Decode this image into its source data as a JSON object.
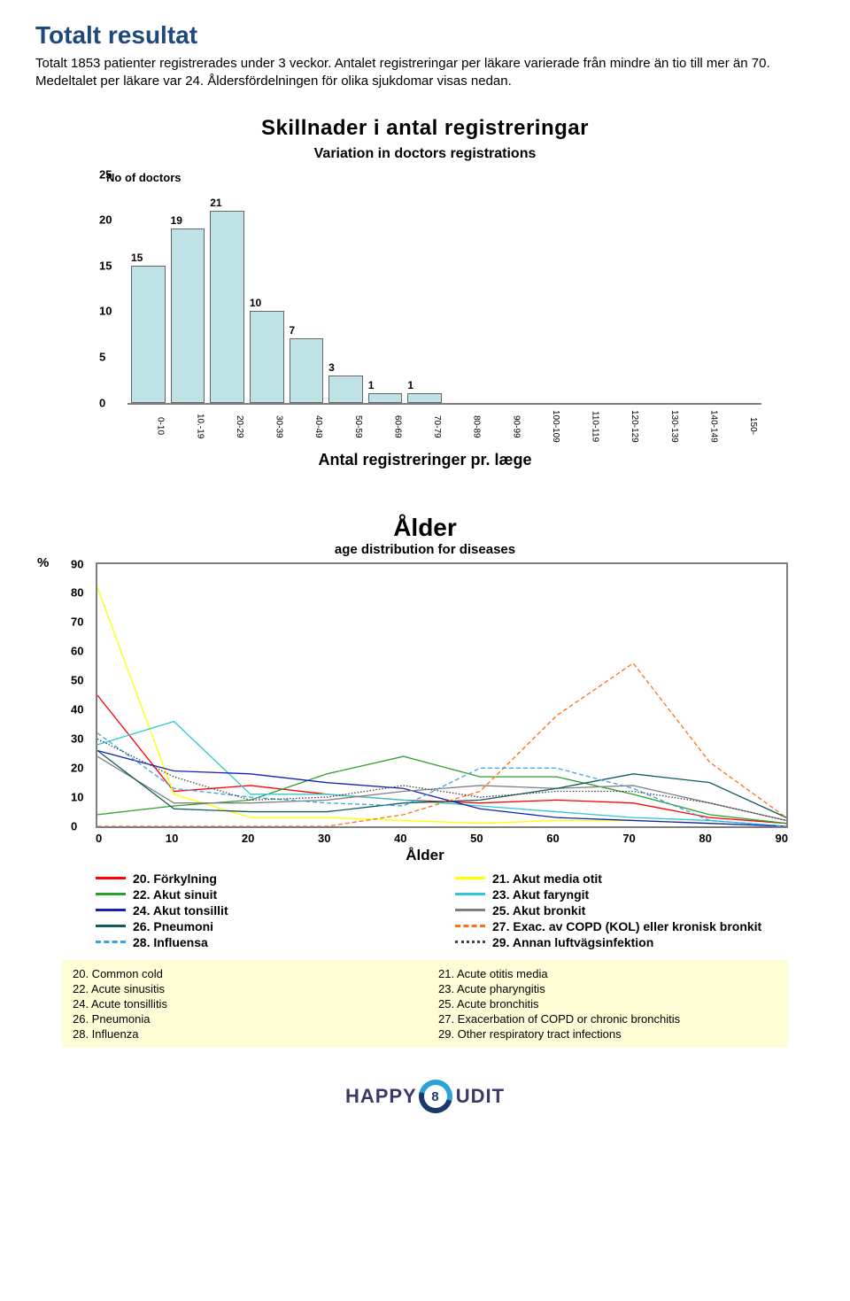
{
  "title": "Totalt resultat",
  "intro": "Totalt 1853 patienter registrerades under 3 veckor. Antalet registreringar per läkare varierade från mindre än tio till mer än 70. Medeltalet per läkare var 24. Åldersfördelningen för olika sjukdomar visas nedan.",
  "bar_chart": {
    "type": "bar",
    "title": "Skillnader i antal registreringar",
    "subtitle": "Variation in doctors registrations",
    "y_note": "No of doctors",
    "bar_color": "#bfe2e7",
    "bar_border": "#666666",
    "axis_color": "#7f7f7f",
    "y_max": 25,
    "y_ticks": [
      0,
      5,
      10,
      15,
      20,
      25
    ],
    "categories": [
      "0-10",
      "10.-19",
      "20-29",
      "30-39",
      "40-49",
      "50-59",
      "60-69",
      "70-79",
      "80-89",
      "90-99",
      "100-109",
      "110-119",
      "120-129",
      "130-139",
      "140-149",
      "150-"
    ],
    "values": [
      15,
      19,
      21,
      10,
      7,
      3,
      1,
      1,
      0,
      0,
      0,
      0,
      0,
      0,
      0,
      0
    ],
    "x_title": "Antal registreringer pr. læge"
  },
  "line_chart": {
    "type": "line",
    "title": "Ålder",
    "subtitle": "age distribution for diseases",
    "pct_label": "%",
    "y_max": 90,
    "y_ticks": [
      0,
      10,
      20,
      30,
      40,
      50,
      60,
      70,
      80,
      90
    ],
    "x_max": 90,
    "x_ticks": [
      0,
      10,
      20,
      30,
      40,
      50,
      60,
      70,
      80,
      90
    ],
    "x_title": "Ålder",
    "axis_color": "#7f7f7f",
    "series": [
      {
        "label": "20. Förkylning",
        "en": "20. Common cold",
        "color": "#ff0000",
        "style": "solid",
        "pts": [
          [
            0,
            45
          ],
          [
            10,
            12
          ],
          [
            20,
            14
          ],
          [
            30,
            11
          ],
          [
            40,
            9
          ],
          [
            50,
            8
          ],
          [
            60,
            9
          ],
          [
            70,
            8
          ],
          [
            80,
            3
          ],
          [
            90,
            1
          ]
        ]
      },
      {
        "label": "21. Akut media otit",
        "en": "21. Acute otitis media",
        "color": "#ffff00",
        "style": "solid",
        "pts": [
          [
            0,
            82
          ],
          [
            10,
            11
          ],
          [
            20,
            3
          ],
          [
            30,
            3
          ],
          [
            40,
            2
          ],
          [
            50,
            1
          ],
          [
            60,
            2
          ],
          [
            70,
            2
          ],
          [
            80,
            1
          ],
          [
            90,
            0
          ]
        ]
      },
      {
        "label": "22. Akut sinuit",
        "en": "22. Acute sinusitis",
        "color": "#2e9e2e",
        "style": "solid",
        "pts": [
          [
            0,
            4
          ],
          [
            10,
            7
          ],
          [
            20,
            9
          ],
          [
            30,
            18
          ],
          [
            40,
            24
          ],
          [
            50,
            17
          ],
          [
            60,
            17
          ],
          [
            70,
            11
          ],
          [
            80,
            4
          ],
          [
            90,
            1
          ]
        ]
      },
      {
        "label": "23. Akut faryngit",
        "en": "23. Acute pharyngitis",
        "color": "#2fc8d6",
        "style": "solid",
        "pts": [
          [
            0,
            28
          ],
          [
            10,
            36
          ],
          [
            20,
            11
          ],
          [
            30,
            11
          ],
          [
            40,
            9
          ],
          [
            50,
            7
          ],
          [
            60,
            5
          ],
          [
            70,
            3
          ],
          [
            80,
            2
          ],
          [
            90,
            0
          ]
        ]
      },
      {
        "label": "24. Akut tonsillit",
        "en": "24. Acute tonsillitis",
        "color": "#1320b5",
        "style": "solid",
        "pts": [
          [
            0,
            26
          ],
          [
            10,
            19
          ],
          [
            20,
            18
          ],
          [
            30,
            15
          ],
          [
            40,
            13
          ],
          [
            50,
            6
          ],
          [
            60,
            3
          ],
          [
            70,
            2
          ],
          [
            80,
            1
          ],
          [
            90,
            0
          ]
        ]
      },
      {
        "label": "25. Akut bronkit",
        "en": "25. Acute bronchitis",
        "color": "#808080",
        "style": "solid",
        "pts": [
          [
            0,
            24
          ],
          [
            10,
            8
          ],
          [
            20,
            8
          ],
          [
            30,
            9
          ],
          [
            40,
            12
          ],
          [
            50,
            14
          ],
          [
            60,
            13
          ],
          [
            70,
            14
          ],
          [
            80,
            8
          ],
          [
            90,
            2
          ]
        ]
      },
      {
        "label": "26. Pneumoni",
        "en": "26. Pneumonia",
        "color": "#0f5a5a",
        "style": "solid",
        "pts": [
          [
            0,
            26
          ],
          [
            10,
            6
          ],
          [
            20,
            5
          ],
          [
            30,
            5
          ],
          [
            40,
            8
          ],
          [
            50,
            9
          ],
          [
            60,
            13
          ],
          [
            70,
            18
          ],
          [
            80,
            15
          ],
          [
            90,
            3
          ]
        ]
      },
      {
        "label": "27. Exac. av COPD (KOL) eller kronisk bronkit",
        "en": "27. Exacerbation of COPD or chronic bronchitis",
        "color": "#ff7014",
        "style": "dash",
        "pts": [
          [
            0,
            0
          ],
          [
            10,
            0
          ],
          [
            20,
            0
          ],
          [
            30,
            0
          ],
          [
            40,
            4
          ],
          [
            50,
            12
          ],
          [
            60,
            38
          ],
          [
            70,
            56
          ],
          [
            80,
            22
          ],
          [
            90,
            3
          ]
        ]
      },
      {
        "label": "28. Influensa",
        "en": "28. Influenza",
        "color": "#3aa2e3",
        "style": "dash",
        "pts": [
          [
            0,
            32
          ],
          [
            10,
            13
          ],
          [
            20,
            10
          ],
          [
            30,
            8
          ],
          [
            40,
            7
          ],
          [
            50,
            20
          ],
          [
            60,
            20
          ],
          [
            70,
            13
          ],
          [
            80,
            2
          ],
          [
            90,
            0
          ]
        ]
      },
      {
        "label": "29. Annan luftvägsinfektion",
        "en": "29. Other respiratory tract infections",
        "color": "#404040",
        "style": "dot",
        "pts": [
          [
            0,
            30
          ],
          [
            10,
            17
          ],
          [
            20,
            9
          ],
          [
            30,
            10
          ],
          [
            40,
            14
          ],
          [
            50,
            10
          ],
          [
            60,
            12
          ],
          [
            70,
            12
          ],
          [
            80,
            8
          ],
          [
            90,
            2
          ]
        ]
      }
    ]
  },
  "footer": {
    "page": "8",
    "brand_left": "HAPPY",
    "brand_right": "UDIT"
  }
}
